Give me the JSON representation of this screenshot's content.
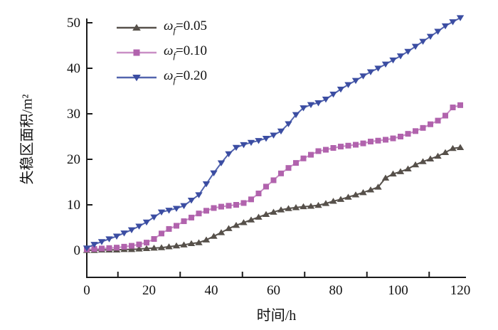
{
  "figure": {
    "x_axis_title": "时间/h",
    "y_axis_title": "失稳区面积/m²",
    "background": "#ffffff",
    "axis_color": "#1a1a1a"
  },
  "legend": {
    "position": "upper-left",
    "items": [
      {
        "symbol": "ω",
        "sub": "f",
        "value": "=0.05",
        "marker": "triangle-up",
        "color": "#56504a",
        "line_color": "#56504a"
      },
      {
        "symbol": "ω",
        "sub": "f",
        "value": "=0.10",
        "marker": "square",
        "color": "#b163ad",
        "line_color": "#c98fc6"
      },
      {
        "symbol": "ω",
        "sub": "f",
        "value": "=0.20",
        "marker": "triangle-down",
        "color": "#3b4da2",
        "line_color": "#5264ae"
      }
    ]
  },
  "chart_data": {
    "type": "line",
    "title": "",
    "xlabel": "时间/h",
    "ylabel": "失稳区面积/m²",
    "xlim": [
      0,
      122
    ],
    "ylim": [
      -6,
      52
    ],
    "x_ticks": [
      0,
      20,
      40,
      60,
      80,
      100,
      120
    ],
    "x_minor_ticks": [
      10,
      30,
      50,
      70,
      90,
      110
    ],
    "y_ticks": [
      0,
      10,
      20,
      30,
      40,
      50
    ],
    "grid": false,
    "legend_position": "upper-left",
    "x": [
      0,
      2.4,
      4.8,
      7.2,
      9.6,
      12,
      14.4,
      16.8,
      19.2,
      21.6,
      24,
      26.4,
      28.8,
      31.2,
      33.6,
      36,
      38.4,
      40.8,
      43.2,
      45.6,
      48,
      50.4,
      52.8,
      55.2,
      57.6,
      60,
      62.4,
      64.8,
      67.2,
      69.6,
      72,
      74.4,
      76.8,
      79.2,
      81.6,
      84,
      86.4,
      88.8,
      91.2,
      93.6,
      96,
      98.4,
      100.8,
      103.2,
      105.6,
      108,
      110.4,
      112.8,
      115.2,
      117.6,
      120
    ],
    "series": [
      {
        "name": "ωf=0.05",
        "marker": "triangle-up",
        "color": "#56504a",
        "line_color": "#56504a",
        "values": [
          0,
          0,
          0.1,
          0.1,
          0.1,
          0.2,
          0.2,
          0.3,
          0.4,
          0.5,
          0.6,
          0.8,
          1,
          1.2,
          1.5,
          1.7,
          2.3,
          3.1,
          3.9,
          4.8,
          5.5,
          6.1,
          6.7,
          7.3,
          7.9,
          8.4,
          8.9,
          9.2,
          9.4,
          9.6,
          9.7,
          9.9,
          10.3,
          10.8,
          11.2,
          11.7,
          12.2,
          12.7,
          13.3,
          13.9,
          15.9,
          16.8,
          17.3,
          17.9,
          18.8,
          19.5,
          20.1,
          20.7,
          21.5,
          22.4,
          22.6
        ]
      },
      {
        "name": "ωf=0.10",
        "marker": "square",
        "color": "#b163ad",
        "line_color": "#c98fc6",
        "values": [
          0.2,
          0.3,
          0.4,
          0.5,
          0.6,
          0.8,
          1,
          1.3,
          1.7,
          2.5,
          3.7,
          4.7,
          5.4,
          6.4,
          7.2,
          8.1,
          8.7,
          9.3,
          9.6,
          9.8,
          10,
          10.4,
          11.2,
          12.5,
          14,
          15.4,
          16.9,
          18.1,
          19.2,
          20.2,
          21,
          21.8,
          22.1,
          22.5,
          22.8,
          23,
          23.2,
          23.5,
          23.9,
          24.1,
          24.3,
          24.6,
          25,
          25.6,
          26.2,
          26.9,
          27.7,
          28.5,
          29.6,
          31.4,
          31.9
        ]
      },
      {
        "name": "ωf=0.20",
        "marker": "triangle-down",
        "color": "#3b4da2",
        "line_color": "#5264ae",
        "values": [
          0.5,
          1.3,
          1.9,
          2.5,
          3.1,
          3.8,
          4.5,
          5.3,
          6.2,
          7.3,
          8.4,
          8.8,
          9.2,
          9.8,
          11,
          12.2,
          14.6,
          17,
          19.2,
          21.2,
          22.6,
          23.2,
          23.7,
          24.1,
          24.6,
          25.3,
          26.2,
          27.8,
          29.8,
          31.3,
          32,
          32.4,
          33.2,
          34.3,
          35.4,
          36.4,
          37.3,
          38.3,
          39.2,
          40,
          40.9,
          41.8,
          42.7,
          43.7,
          44.8,
          45.9,
          47,
          48.1,
          49.3,
          50.2,
          51.1
        ]
      }
    ]
  }
}
